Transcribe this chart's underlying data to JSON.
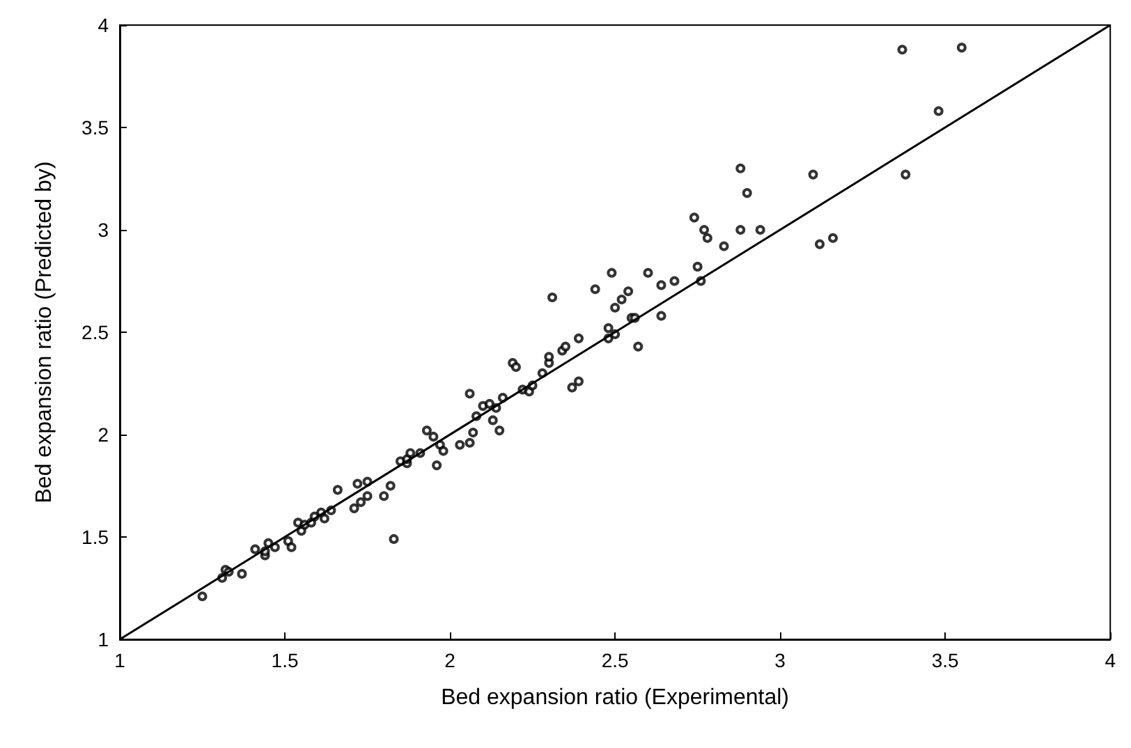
{
  "chart_data": {
    "type": "scatter",
    "xlabel": "Bed expansion ratio (Experimental)",
    "ylabel": "Bed expansion ratio (Predicted by)",
    "xlim": [
      1,
      4
    ],
    "ylim": [
      1,
      4
    ],
    "xticks": [
      1,
      1.5,
      2,
      2.5,
      3,
      3.5,
      4
    ],
    "yticks": [
      1,
      1.5,
      2,
      2.5,
      3,
      3.5,
      4
    ],
    "grid": false,
    "marker": "circle",
    "series": [
      {
        "color": "#000000",
        "x": [
          1.25,
          1.31,
          1.32,
          1.33,
          1.37,
          1.41,
          1.44,
          1.44,
          1.45,
          1.47,
          1.51,
          1.52,
          1.54,
          1.55,
          1.56,
          1.58,
          1.59,
          1.61,
          1.62,
          1.64,
          1.66,
          1.71,
          1.72,
          1.73,
          1.75,
          1.75,
          1.8,
          1.82,
          1.83,
          1.85,
          1.87,
          1.87,
          1.88,
          1.91,
          1.93,
          1.95,
          1.96,
          1.97,
          1.98,
          2.03,
          2.06,
          2.06,
          2.07,
          2.08,
          2.1,
          2.12,
          2.13,
          2.14,
          2.15,
          2.16,
          2.19,
          2.2,
          2.22,
          2.24,
          2.25,
          2.28,
          2.3,
          2.3,
          2.31,
          2.34,
          2.35,
          2.37,
          2.39,
          2.39,
          2.44,
          2.48,
          2.48,
          2.49,
          2.5,
          2.5,
          2.52,
          2.54,
          2.55,
          2.56,
          2.57,
          2.6,
          2.64,
          2.64,
          2.68,
          2.74,
          2.75,
          2.76,
          2.77,
          2.78,
          2.83,
          2.88,
          2.88,
          2.9,
          2.94,
          3.1,
          3.12,
          3.16,
          3.37,
          3.38,
          3.48,
          3.55
        ],
        "values": [
          1.21,
          1.3,
          1.34,
          1.33,
          1.32,
          1.44,
          1.41,
          1.43,
          1.47,
          1.45,
          1.48,
          1.45,
          1.57,
          1.53,
          1.56,
          1.57,
          1.6,
          1.62,
          1.59,
          1.63,
          1.73,
          1.64,
          1.76,
          1.67,
          1.7,
          1.77,
          1.7,
          1.75,
          1.49,
          1.87,
          1.86,
          1.88,
          1.91,
          1.91,
          2.02,
          1.99,
          1.85,
          1.95,
          1.92,
          1.95,
          2.2,
          1.96,
          2.01,
          2.09,
          2.14,
          2.15,
          2.07,
          2.13,
          2.02,
          2.18,
          2.35,
          2.33,
          2.22,
          2.21,
          2.24,
          2.3,
          2.35,
          2.38,
          2.67,
          2.41,
          2.43,
          2.23,
          2.26,
          2.47,
          2.71,
          2.52,
          2.47,
          2.79,
          2.49,
          2.62,
          2.66,
          2.7,
          2.57,
          2.57,
          2.43,
          2.79,
          2.58,
          2.73,
          2.75,
          3.06,
          2.82,
          2.75,
          3,
          2.96,
          2.92,
          3,
          3.3,
          3.18,
          3,
          3.27,
          2.93,
          2.96,
          3.88,
          3.27,
          3.58,
          3.89
        ]
      },
      {
        "type": "line",
        "color": "#000000",
        "x": [
          1,
          4
        ],
        "values": [
          1,
          4
        ],
        "marker": "none",
        "line_style": "solid"
      }
    ]
  }
}
